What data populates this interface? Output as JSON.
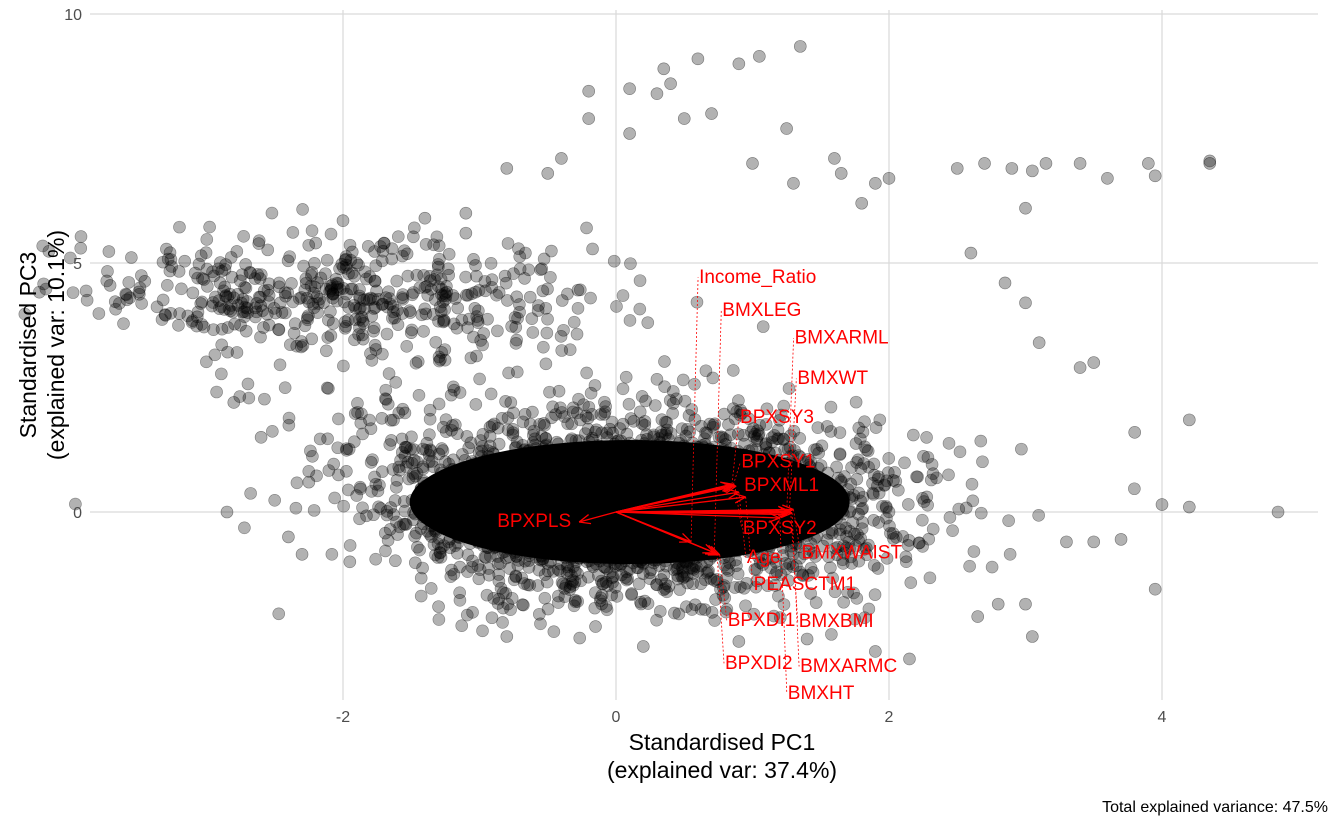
{
  "chart_data": {
    "type": "scatter",
    "subtype": "pca-biplot",
    "xlabel": "Standardised PC1",
    "xlabel2": "(explained var: 37.4%)",
    "ylabel": "Standardised PC3",
    "ylabel2": "(explained var: 10.1%)",
    "caption": "Total explained variance: 47.5%",
    "xlim": [
      -3.5,
      5.2
    ],
    "ylim": [
      -3.2,
      10
    ],
    "xticks": [
      "-2",
      "0",
      "2",
      "4"
    ],
    "xtick_values": [
      -2,
      0,
      2,
      4
    ],
    "yticks": [
      "0",
      "5",
      "10"
    ],
    "ytick_values": [
      0,
      5,
      10
    ],
    "grid": true,
    "point_color": "#000000",
    "point_alpha": 0.3,
    "arrow_color": "#ff0000",
    "points": [
      [
        -3.3,
        3.95
      ],
      [
        -3.1,
        4.4
      ],
      [
        -2.9,
        4.6
      ],
      [
        -2.8,
        4.3
      ],
      [
        -2.8,
        2.2
      ],
      [
        -2.85,
        0
      ],
      [
        -2.6,
        1.5
      ],
      [
        -2.3,
        -0.85
      ],
      [
        -2.2,
        5.4
      ],
      [
        -2.0,
        5.85
      ],
      [
        -1.9,
        5.0
      ],
      [
        -1.7,
        5.4
      ],
      [
        -1.1,
        6.0
      ],
      [
        -1.1,
        5.6
      ],
      [
        -0.8,
        6.9
      ],
      [
        -0.4,
        7.1
      ],
      [
        -0.2,
        7.9
      ],
      [
        0.1,
        8.5
      ],
      [
        -0.2,
        8.45
      ],
      [
        0.3,
        8.4
      ],
      [
        0.35,
        8.9
      ],
      [
        0.6,
        9.1
      ],
      [
        0.4,
        8.6
      ],
      [
        0.5,
        7.9
      ],
      [
        0.7,
        8.0
      ],
      [
        0.9,
        9.0
      ],
      [
        1.0,
        7.0
      ],
      [
        1.05,
        9.15
      ],
      [
        1.35,
        9.35
      ],
      [
        1.25,
        7.7
      ],
      [
        1.6,
        7.1
      ],
      [
        1.65,
        6.8
      ],
      [
        1.9,
        6.6
      ],
      [
        2.0,
        6.7
      ],
      [
        1.8,
        6.2
      ],
      [
        2.5,
        6.9
      ],
      [
        2.7,
        7.0
      ],
      [
        2.9,
        6.9
      ],
      [
        3.05,
        6.85
      ],
      [
        3.15,
        7.0
      ],
      [
        3.4,
        7.0
      ],
      [
        3.6,
        6.7
      ],
      [
        3.9,
        7.0
      ],
      [
        3.95,
        6.75
      ],
      [
        4.35,
        7.0
      ],
      [
        4.35,
        7.05
      ],
      [
        3.0,
        6.1
      ],
      [
        2.6,
        5.2
      ],
      [
        2.85,
        4.6
      ],
      [
        3.0,
        4.2
      ],
      [
        3.1,
        3.4
      ],
      [
        3.5,
        3.0
      ],
      [
        3.4,
        2.9
      ],
      [
        3.8,
        1.6
      ],
      [
        4.2,
        1.85
      ],
      [
        4.0,
        0.15
      ],
      [
        4.2,
        0.1
      ],
      [
        4.85,
        0.0
      ],
      [
        3.95,
        -1.55
      ],
      [
        3.7,
        -0.55
      ],
      [
        3.5,
        -0.6
      ],
      [
        3.3,
        -0.6
      ],
      [
        3.05,
        -2.5
      ],
      [
        3.0,
        -1.85
      ],
      [
        2.8,
        -1.85
      ],
      [
        2.65,
        -2.1
      ],
      [
        2.15,
        -2.95
      ],
      [
        1.9,
        -2.8
      ],
      [
        1.4,
        -2.55
      ],
      [
        0.9,
        -2.6
      ],
      [
        0.2,
        -2.7
      ],
      [
        -0.15,
        -2.3
      ],
      [
        -0.8,
        -2.5
      ],
      [
        -1.3,
        -1.9
      ],
      [
        -1.95,
        -1.0
      ],
      [
        -2.25,
        0.6
      ],
      [
        -2.4,
        -0.5
      ],
      [
        -1.4,
        5.9
      ],
      [
        -1.5,
        3.6
      ],
      [
        -0.5,
        6.8
      ],
      [
        0.1,
        7.6
      ],
      [
        1.3,
        6.6
      ]
    ],
    "arrows": [
      {
        "label": "BPXML1",
        "x": 0.88,
        "y": 0.52
      },
      {
        "label": "BPXSY1",
        "x": 0.86,
        "y": 0.55
      },
      {
        "label": "BPXSY2",
        "x": 0.87,
        "y": 0.54
      },
      {
        "label": "BPXSY3",
        "x": 0.85,
        "y": 0.56
      },
      {
        "label": "Age",
        "x": 0.9,
        "y": 0.4
      },
      {
        "label": "PEASCTM1",
        "x": 0.95,
        "y": 0.3
      },
      {
        "label": "BMXWAIST",
        "x": 1.3,
        "y": 0.05
      },
      {
        "label": "BMXBMI",
        "x": 1.28,
        "y": 0.0
      },
      {
        "label": "BMXWT",
        "x": 1.27,
        "y": 0.02
      },
      {
        "label": "BMXARMC",
        "x": 1.29,
        "y": -0.02
      },
      {
        "label": "BMXARML",
        "x": 1.25,
        "y": -0.05
      },
      {
        "label": "BMXHT",
        "x": 1.2,
        "y": -0.12
      },
      {
        "label": "BPXPLS",
        "x": -0.27,
        "y": -0.2
      },
      {
        "label": "BPXDI1",
        "x": 0.76,
        "y": -0.86
      },
      {
        "label": "BPXDI2",
        "x": 0.74,
        "y": -0.84
      },
      {
        "label": "BMXLEG",
        "x": 0.72,
        "y": -0.82
      },
      {
        "label": "Income_Ratio",
        "x": 0.55,
        "y": -0.6
      }
    ]
  }
}
